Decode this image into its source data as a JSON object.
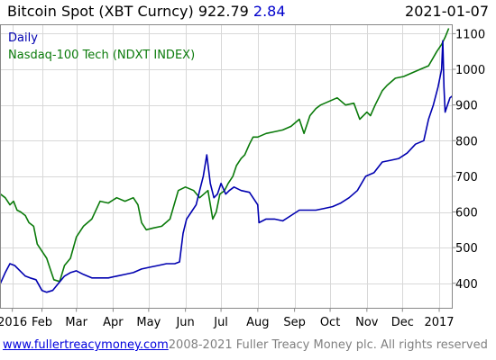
{
  "header": {
    "instrument": "Bitcoin Spot (XBT Curncy)",
    "price": "922.79",
    "change": "2.84",
    "date": "2021-01-07"
  },
  "footer": {
    "url": "www.fullertreacymoney.com",
    "copyright": "2008-2021 Fuller Treacy Money plc. All rights reserved"
  },
  "colors": {
    "bitcoin": "#0000b0",
    "nasdaq": "#0a7a0a",
    "grid": "#d8d8d8",
    "frame": "#888888",
    "change": "#0000cc",
    "url": "#0000dd"
  },
  "chart_data": {
    "type": "line",
    "grid": true,
    "legend_placement": "top-left",
    "legend": [
      "Daily",
      "Nasdaq-100 Tech (NDXT INDEX)"
    ],
    "x_ticks": [
      "2016",
      "Feb",
      "Mar",
      "Apr",
      "May",
      "Jun",
      "Jul",
      "Aug",
      "Sep",
      "Oct",
      "Nov",
      "Dec",
      "2017"
    ],
    "y_ticks": [
      400,
      500,
      600,
      700,
      800,
      900,
      1000,
      1100
    ],
    "ylim": [
      330,
      1125
    ],
    "xlim": [
      "2015-12-28",
      "2017-01-12"
    ],
    "series": [
      {
        "name": "Nasdaq-100 Tech (NDXT INDEX)",
        "dates": [
          "2015-12-28",
          "2016-01-01",
          "2016-01-05",
          "2016-01-08",
          "2016-01-11",
          "2016-01-14",
          "2016-01-18",
          "2016-01-21",
          "2016-01-25",
          "2016-01-28",
          "2016-02-01",
          "2016-02-05",
          "2016-02-08",
          "2016-02-11",
          "2016-02-16",
          "2016-02-20",
          "2016-02-25",
          "2016-03-01",
          "2016-03-07",
          "2016-03-14",
          "2016-03-21",
          "2016-03-28",
          "2016-04-04",
          "2016-04-11",
          "2016-04-18",
          "2016-04-22",
          "2016-04-25",
          "2016-04-29",
          "2016-05-05",
          "2016-05-12",
          "2016-05-19",
          "2016-05-26",
          "2016-06-01",
          "2016-06-08",
          "2016-06-13",
          "2016-06-20",
          "2016-06-24",
          "2016-06-27",
          "2016-06-30",
          "2016-07-04",
          "2016-07-07",
          "2016-07-11",
          "2016-07-14",
          "2016-07-18",
          "2016-07-21",
          "2016-07-25",
          "2016-07-28",
          "2016-08-01",
          "2016-08-08",
          "2016-08-15",
          "2016-08-22",
          "2016-08-29",
          "2016-09-05",
          "2016-09-09",
          "2016-09-14",
          "2016-09-19",
          "2016-09-23",
          "2016-09-30",
          "2016-10-07",
          "2016-10-14",
          "2016-10-21",
          "2016-10-26",
          "2016-11-01",
          "2016-11-04",
          "2016-11-08",
          "2016-11-11",
          "2016-11-14",
          "2016-11-18",
          "2016-11-25",
          "2016-12-02",
          "2016-12-09",
          "2016-12-16",
          "2016-12-23",
          "2016-12-30",
          "2017-01-03",
          "2017-01-06",
          "2017-01-09"
        ],
        "values": [
          650,
          640,
          620,
          630,
          605,
          600,
          590,
          570,
          560,
          510,
          490,
          470,
          440,
          410,
          405,
          450,
          470,
          530,
          560,
          580,
          630,
          625,
          640,
          630,
          640,
          620,
          570,
          550,
          555,
          560,
          580,
          660,
          670,
          660,
          640,
          660,
          580,
          600,
          650,
          660,
          680,
          700,
          730,
          750,
          760,
          790,
          810,
          810,
          820,
          825,
          830,
          840,
          860,
          820,
          870,
          890,
          900,
          910,
          920,
          900,
          905,
          860,
          880,
          870,
          900,
          920,
          940,
          955,
          975,
          980,
          990,
          1000,
          1010,
          1050,
          1070,
          1090,
          1115
        ]
      },
      {
        "name": "Bitcoin Spot (XBT Curncy)",
        "dates": [
          "2015-12-28",
          "2016-01-01",
          "2016-01-05",
          "2016-01-09",
          "2016-01-12",
          "2016-01-15",
          "2016-01-18",
          "2016-01-22",
          "2016-01-27",
          "2016-02-01",
          "2016-02-05",
          "2016-02-10",
          "2016-02-15",
          "2016-02-20",
          "2016-02-25",
          "2016-03-01",
          "2016-03-07",
          "2016-03-14",
          "2016-03-21",
          "2016-03-28",
          "2016-04-04",
          "2016-04-11",
          "2016-04-18",
          "2016-04-25",
          "2016-05-02",
          "2016-05-09",
          "2016-05-16",
          "2016-05-23",
          "2016-05-27",
          "2016-05-30",
          "2016-06-02",
          "2016-06-06",
          "2016-06-10",
          "2016-06-13",
          "2016-06-16",
          "2016-06-19",
          "2016-06-22",
          "2016-06-25",
          "2016-06-28",
          "2016-07-01",
          "2016-07-05",
          "2016-07-08",
          "2016-07-12",
          "2016-07-18",
          "2016-07-25",
          "2016-08-01",
          "2016-08-02",
          "2016-08-08",
          "2016-08-15",
          "2016-08-22",
          "2016-08-29",
          "2016-09-05",
          "2016-09-12",
          "2016-09-19",
          "2016-09-26",
          "2016-10-03",
          "2016-10-10",
          "2016-10-17",
          "2016-10-24",
          "2016-10-31",
          "2016-11-07",
          "2016-11-14",
          "2016-11-21",
          "2016-11-28",
          "2016-12-05",
          "2016-12-12",
          "2016-12-19",
          "2016-12-23",
          "2016-12-27",
          "2016-12-31",
          "2017-01-03",
          "2017-01-04",
          "2017-01-05",
          "2017-01-06",
          "2017-01-07",
          "2017-01-08",
          "2017-01-09",
          "2017-01-10",
          "2017-01-12"
        ],
        "values": [
          400,
          430,
          455,
          450,
          440,
          430,
          420,
          415,
          410,
          380,
          375,
          380,
          400,
          420,
          430,
          435,
          425,
          415,
          415,
          415,
          420,
          425,
          430,
          440,
          445,
          450,
          455,
          455,
          460,
          540,
          580,
          600,
          620,
          660,
          700,
          760,
          680,
          640,
          650,
          680,
          650,
          660,
          670,
          660,
          655,
          620,
          570,
          580,
          580,
          575,
          590,
          605,
          605,
          605,
          610,
          615,
          625,
          640,
          660,
          700,
          710,
          740,
          745,
          750,
          765,
          790,
          800,
          860,
          900,
          950,
          1000,
          1080,
          950,
          880,
          890,
          900,
          910,
          920,
          925
        ]
      }
    ]
  }
}
